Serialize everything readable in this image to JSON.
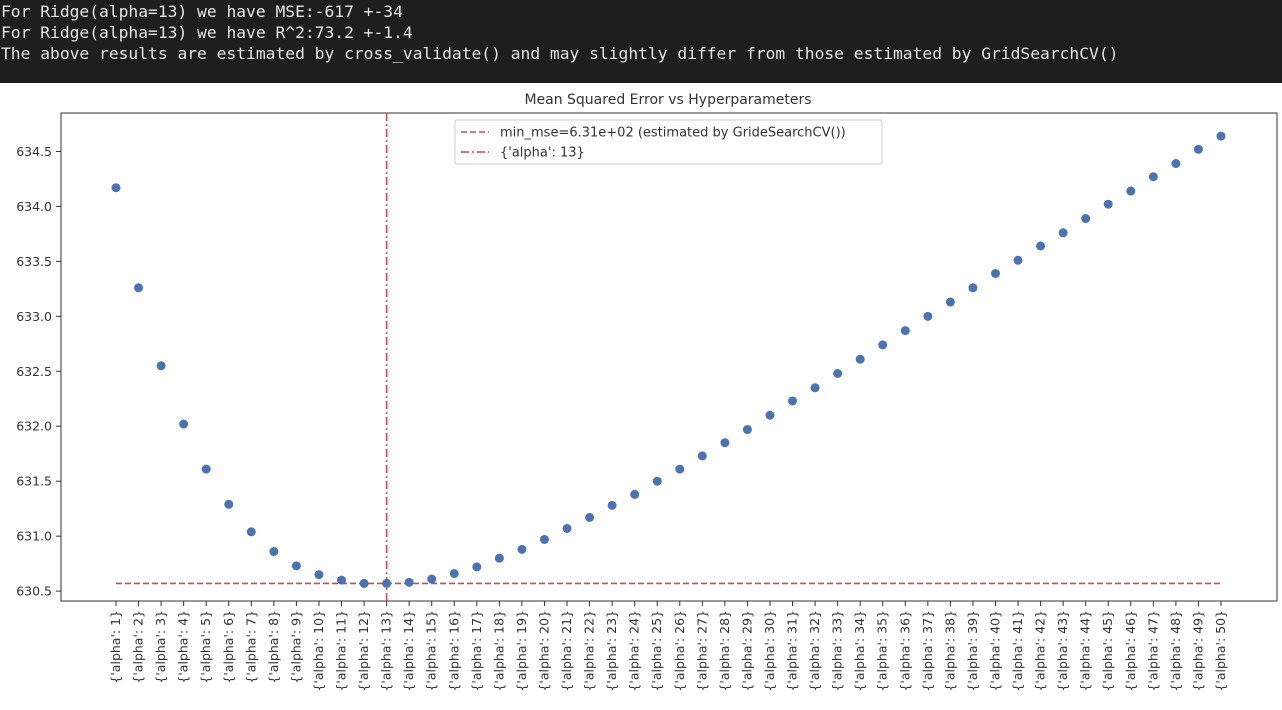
{
  "console": {
    "lines": [
      "For Ridge(alpha=13) we have MSE:-617 +-34",
      "For Ridge(alpha=13) we have R^2:73.2 +-1.4",
      "The above results are estimated by cross_validate() and may slightly differ from those estimated by GridSearchCV()"
    ]
  },
  "chart_data": {
    "type": "scatter",
    "title": "Mean Squared Error vs Hyperparameters",
    "xlabel": "",
    "ylabel": "",
    "categories": [
      "{'alpha': 1}",
      "{'alpha': 2}",
      "{'alpha': 3}",
      "{'alpha': 4}",
      "{'alpha': 5}",
      "{'alpha': 6}",
      "{'alpha': 7}",
      "{'alpha': 8}",
      "{'alpha': 9}",
      "{'alpha': 10}",
      "{'alpha': 11}",
      "{'alpha': 12}",
      "{'alpha': 13}",
      "{'alpha': 14}",
      "{'alpha': 15}",
      "{'alpha': 16}",
      "{'alpha': 17}",
      "{'alpha': 18}",
      "{'alpha': 19}",
      "{'alpha': 20}",
      "{'alpha': 21}",
      "{'alpha': 22}",
      "{'alpha': 23}",
      "{'alpha': 24}",
      "{'alpha': 25}",
      "{'alpha': 26}",
      "{'alpha': 27}",
      "{'alpha': 28}",
      "{'alpha': 29}",
      "{'alpha': 30}",
      "{'alpha': 31}",
      "{'alpha': 32}",
      "{'alpha': 33}",
      "{'alpha': 34}",
      "{'alpha': 35}",
      "{'alpha': 36}",
      "{'alpha': 37}",
      "{'alpha': 38}",
      "{'alpha': 39}",
      "{'alpha': 40}",
      "{'alpha': 41}",
      "{'alpha': 42}",
      "{'alpha': 43}",
      "{'alpha': 44}",
      "{'alpha': 45}",
      "{'alpha': 46}",
      "{'alpha': 47}",
      "{'alpha': 48}",
      "{'alpha': 49}",
      "{'alpha': 50}"
    ],
    "values": [
      634.17,
      633.26,
      632.55,
      632.02,
      631.61,
      631.29,
      631.04,
      630.86,
      630.73,
      630.65,
      630.6,
      630.57,
      630.57,
      630.58,
      630.61,
      630.66,
      630.72,
      630.8,
      630.88,
      630.97,
      631.07,
      631.17,
      631.28,
      631.38,
      631.5,
      631.61,
      631.73,
      631.85,
      631.97,
      632.1,
      632.23,
      632.35,
      632.48,
      632.61,
      632.74,
      632.87,
      633.0,
      633.13,
      633.26,
      633.39,
      633.51,
      633.64,
      633.76,
      633.89,
      634.02,
      634.14,
      634.27,
      634.39,
      634.52,
      634.64
    ],
    "yticks": [
      630.5,
      631.0,
      631.5,
      632.0,
      632.5,
      633.0,
      633.5,
      634.0,
      634.5
    ],
    "ytick_labels": [
      "630.5",
      "631.0",
      "631.5",
      "632.0",
      "632.5",
      "633.0",
      "633.5",
      "634.0",
      "634.5"
    ],
    "ylim": [
      630.41,
      634.85
    ],
    "hline": {
      "y": 630.57,
      "style": "dashed",
      "label": "min_mse=6.31e+02 (estimated by GrideSearchCV())"
    },
    "vline": {
      "category": "{'alpha': 13}",
      "style": "dashdot",
      "label": "{'alpha': 13}"
    },
    "legend_position": "top-center",
    "grid": false,
    "colors": {
      "points": "#4c72b0",
      "lines": "#c44e52",
      "axes": "#333333"
    }
  }
}
